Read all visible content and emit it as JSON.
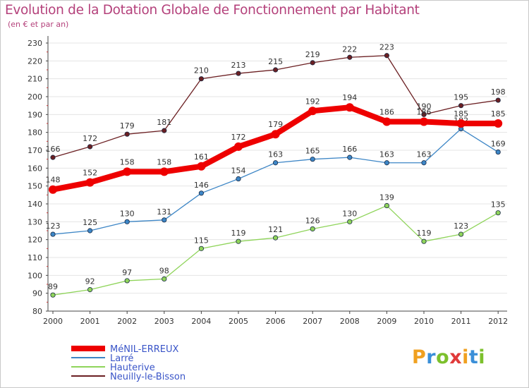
{
  "title": "Evolution de la Dotation Globale de Fonctionnement par Habitant",
  "subtitle": "(en € et par an)",
  "logo_text": "Proxiti",
  "logo_colors": [
    "#f0a020",
    "#3a8fd8",
    "#7cc02c",
    "#e03a3a",
    "#f0a020",
    "#3a8fd8",
    "#7cc02c"
  ],
  "chart_data": {
    "type": "line",
    "x": [
      "2000",
      "2001",
      "2002",
      "2003",
      "2004",
      "2005",
      "2006",
      "2007",
      "2008",
      "2009",
      "2010",
      "2011",
      "2012"
    ],
    "ylim": [
      80,
      230
    ],
    "yticks": [
      80,
      90,
      100,
      110,
      120,
      130,
      140,
      150,
      160,
      170,
      180,
      190,
      200,
      210,
      220,
      230
    ],
    "grid": "horizontal",
    "legend_position": "bottom-left",
    "series": [
      {
        "name": "Neuilly-le-Bisson",
        "color": "#6b1f22",
        "values": [
          166,
          172,
          179,
          181,
          210,
          213,
          215,
          219,
          222,
          223,
          190,
          195,
          198
        ]
      },
      {
        "name": "Larré",
        "color": "#3d86c6",
        "values": [
          123,
          125,
          130,
          131,
          146,
          154,
          163,
          165,
          166,
          163,
          163,
          182,
          169
        ]
      },
      {
        "name": "Hauterive",
        "color": "#8fd45a",
        "values": [
          89,
          92,
          97,
          98,
          115,
          119,
          121,
          126,
          130,
          139,
          119,
          123,
          135
        ]
      },
      {
        "name": "MéNIL-ERREUX",
        "color": "#ee0000",
        "values": [
          148,
          152,
          158,
          158,
          161,
          172,
          179,
          192,
          194,
          186,
          186,
          185,
          185
        ]
      }
    ],
    "data_labels": [
      [
        "166",
        "172",
        "179",
        "181",
        "210",
        "213",
        "215",
        "219",
        "222",
        "223",
        "190",
        "195",
        "198"
      ],
      [
        "123",
        "125",
        "130",
        "131",
        "146",
        "154",
        "163",
        "165",
        "166",
        "163",
        "163",
        "182",
        "169"
      ],
      [
        "89",
        "92",
        "97",
        "98",
        "115",
        "119",
        "121",
        "126",
        "130",
        "139",
        "119",
        "123",
        "135"
      ],
      [
        "148",
        "152",
        "158",
        "158",
        "161",
        "172",
        "179",
        "192",
        "194",
        "186",
        "186",
        "185",
        "185"
      ]
    ],
    "legend_order": [
      "MéNIL-ERREUX",
      "Larré",
      "Hauterive",
      "Neuilly-le-Bisson"
    ]
  }
}
